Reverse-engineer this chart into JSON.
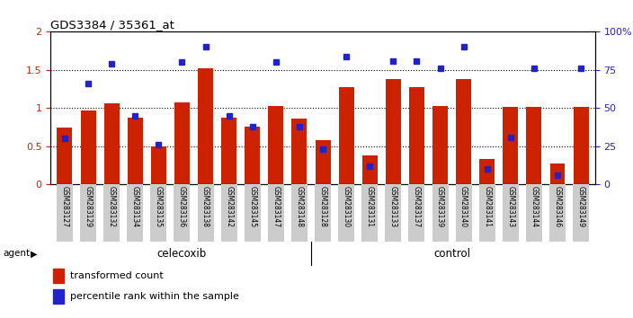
{
  "title": "GDS3384 / 35361_at",
  "samples": [
    "GSM283127",
    "GSM283129",
    "GSM283132",
    "GSM283134",
    "GSM283135",
    "GSM283136",
    "GSM283138",
    "GSM283142",
    "GSM283145",
    "GSM283147",
    "GSM283148",
    "GSM283128",
    "GSM283130",
    "GSM283131",
    "GSM283133",
    "GSM283137",
    "GSM283139",
    "GSM283140",
    "GSM283141",
    "GSM283143",
    "GSM283144",
    "GSM283146",
    "GSM283149"
  ],
  "transformed_count": [
    0.75,
    0.97,
    1.06,
    0.88,
    0.5,
    1.07,
    1.52,
    0.88,
    0.76,
    1.03,
    0.86,
    0.58,
    1.28,
    0.38,
    1.38,
    1.27,
    1.03,
    1.38,
    0.33,
    1.02,
    1.02,
    0.27,
    1.02
  ],
  "percentile_rank_pct": [
    30,
    66,
    79,
    45,
    26,
    80,
    90,
    45,
    38,
    80,
    38,
    23,
    84,
    12,
    81,
    81,
    76,
    90,
    10,
    31,
    76,
    6,
    76
  ],
  "celecoxib_count": 11,
  "control_count": 12,
  "bar_color": "#cc2200",
  "dot_color": "#2222cc",
  "ylim_left": [
    0,
    2
  ],
  "ylim_right": [
    0,
    100
  ],
  "yticks_left": [
    0,
    0.5,
    1.0,
    1.5,
    2.0
  ],
  "ytick_labels_left": [
    "0",
    "0.5",
    "1",
    "1.5",
    "2"
  ],
  "yticks_right": [
    0,
    25,
    50,
    75,
    100
  ],
  "ytick_labels_right": [
    "0",
    "25",
    "50",
    "75",
    "100%"
  ],
  "grid_values": [
    0.5,
    1.0,
    1.5
  ],
  "celecoxib_label": "celecoxib",
  "control_label": "control",
  "agent_label": "agent",
  "legend_bar_label": "transformed count",
  "legend_dot_label": "percentile rank within the sample",
  "bg_color": "#ffffff",
  "plot_bg_color": "#ffffff",
  "agent_row_color": "#77ee77",
  "xticklabel_bg": "#cccccc"
}
